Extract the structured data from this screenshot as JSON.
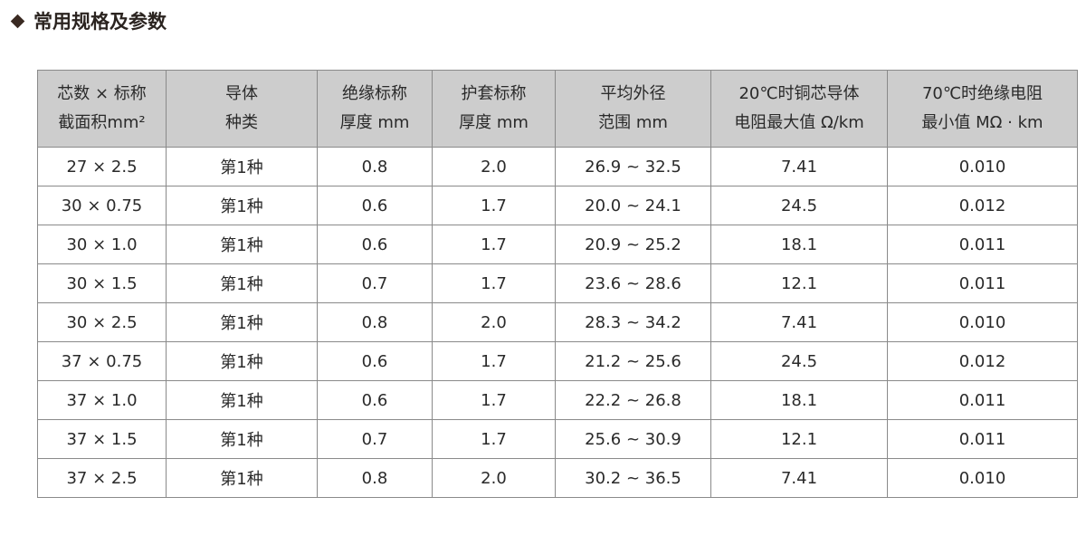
{
  "title": "常用规格及参数",
  "headers": [
    [
      "芯数 × 标称",
      "截面积mm²"
    ],
    [
      "导体",
      "种类"
    ],
    [
      "绝缘标称",
      "厚度 mm"
    ],
    [
      "护套标称",
      "厚度 mm"
    ],
    [
      "平均外径",
      "范围 mm"
    ],
    [
      "20℃时铜芯导体",
      "电阻最大值 Ω/km"
    ],
    [
      "70℃时绝缘电阻",
      "最小值 MΩ · km"
    ]
  ],
  "rows": [
    [
      "27 × 2.5",
      "第1种",
      "0.8",
      "2.0",
      "26.9 ~ 32.5",
      "7.41",
      "0.010"
    ],
    [
      "30 × 0.75",
      "第1种",
      "0.6",
      "1.7",
      "20.0 ~ 24.1",
      "24.5",
      "0.012"
    ],
    [
      "30 × 1.0",
      "第1种",
      "0.6",
      "1.7",
      "20.9 ~ 25.2",
      "18.1",
      "0.011"
    ],
    [
      "30 × 1.5",
      "第1种",
      "0.7",
      "1.7",
      "23.6 ~ 28.6",
      "12.1",
      "0.011"
    ],
    [
      "30 × 2.5",
      "第1种",
      "0.8",
      "2.0",
      "28.3 ~ 34.2",
      "7.41",
      "0.010"
    ],
    [
      "37 × 0.75",
      "第1种",
      "0.6",
      "1.7",
      "21.2 ~ 25.6",
      "24.5",
      "0.012"
    ],
    [
      "37 × 1.0",
      "第1种",
      "0.6",
      "1.7",
      "22.2 ~ 26.8",
      "18.1",
      "0.011"
    ],
    [
      "37 × 1.5",
      "第1种",
      "0.7",
      "1.7",
      "25.6 ~ 30.9",
      "12.1",
      "0.011"
    ],
    [
      "37 × 2.5",
      "第1种",
      "0.8",
      "2.0",
      "30.2 ~ 36.5",
      "7.41",
      "0.010"
    ]
  ]
}
